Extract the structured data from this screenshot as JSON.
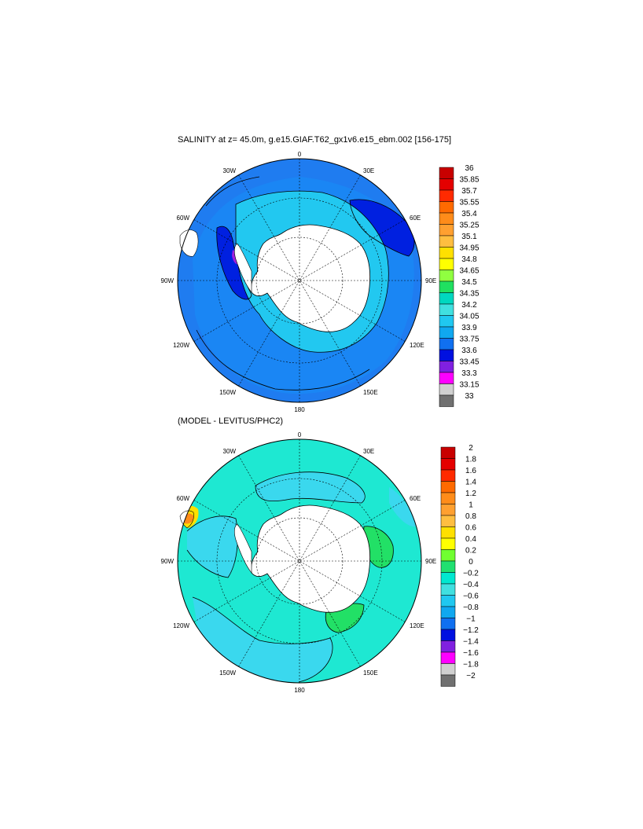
{
  "panel1": {
    "title": "SALINITY at z=  45.0m, g.e15.GIAF.T62_gx1v6.e15_ebm.002 [156-175]",
    "lon_labels": [
      "0",
      "30E",
      "60E",
      "90E",
      "120E",
      "150E",
      "180",
      "150W",
      "120W",
      "90W",
      "60W",
      "30W"
    ],
    "colorbar": {
      "labels": [
        "36",
        "35.85",
        "35.7",
        "35.55",
        "35.4",
        "35.25",
        "35.1",
        "34.95",
        "34.8",
        "34.65",
        "34.5",
        "34.35",
        "34.2",
        "34.05",
        "33.9",
        "33.75",
        "33.6",
        "33.45",
        "33.3",
        "33.15",
        "33"
      ],
      "colors": [
        "#c80000",
        "#e40000",
        "#ff2a00",
        "#ff6a00",
        "#ff8c1a",
        "#ffa030",
        "#ffbe40",
        "#ffe000",
        "#ffff00",
        "#90ff40",
        "#20e060",
        "#00d8c0",
        "#40e0e0",
        "#20c8f0",
        "#10a8f0",
        "#1070f0",
        "#0010e0",
        "#8020e0",
        "#ff00ff",
        "#d0d0d0",
        "#707070"
      ]
    }
  },
  "panel2": {
    "title": "(MODEL - LEVITUS/PHC2)",
    "lon_labels": [
      "0",
      "30E",
      "60E",
      "90E",
      "120E",
      "150E",
      "180",
      "150W",
      "120W",
      "90W",
      "60W",
      "30W"
    ],
    "colorbar": {
      "labels": [
        "2",
        "1.8",
        "1.6",
        "1.4",
        "1.2",
        "1",
        "0.8",
        "0.6",
        "0.4",
        "0.2",
        "0",
        "−0.2",
        "−0.4",
        "−0.6",
        "−0.8",
        "−1",
        "−1.2",
        "−1.4",
        "−1.6",
        "−1.8",
        "−2"
      ],
      "colors": [
        "#c80000",
        "#e40000",
        "#ff2a00",
        "#ff6a00",
        "#ff8c1a",
        "#ffa030",
        "#ffbe40",
        "#ffe000",
        "#ffff00",
        "#70ff30",
        "#20e070",
        "#00e8d0",
        "#40e0e0",
        "#20c8f0",
        "#10a8f0",
        "#1070f0",
        "#0010e0",
        "#8020e0",
        "#ff00ff",
        "#d0d0d0",
        "#707070"
      ]
    }
  },
  "colors": {
    "ocean_salinity": "#1f7cf0",
    "ocean_salinity_fresh": "#0018e0",
    "ocean_salinity_shelf": "#22c8f0",
    "ocean_anomaly": "#1ee8d2",
    "ocean_anomaly_light": "#3ad8ee",
    "anomaly_positive": "#22e066",
    "land": "#ffffff"
  }
}
